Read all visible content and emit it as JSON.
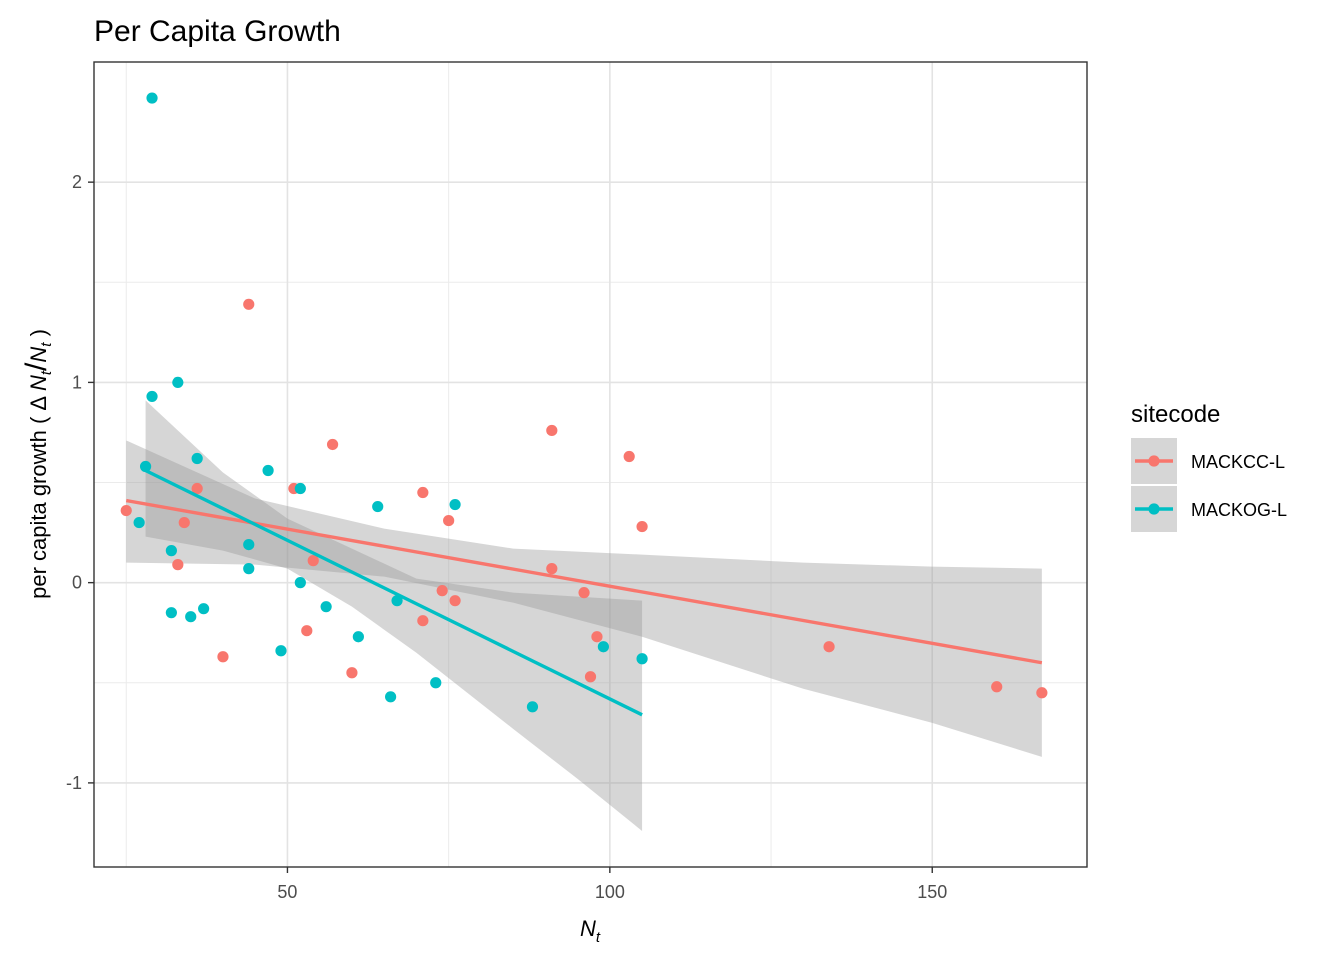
{
  "chart_data": {
    "type": "scatter",
    "title": "Per Capita Growth",
    "xlabel": {
      "main": "N",
      "sub": "t"
    },
    "ylabel": {
      "prefix": "per capita growth ( ",
      "delta": "Δ ",
      "numerator": "N",
      "numerator_sub": "t",
      "slash": "/",
      "denominator": "N",
      "denominator_sub": "t",
      "suffix": " )"
    },
    "xlim": [
      20,
      174
    ],
    "ylim": [
      -1.42,
      2.6
    ],
    "x_major_ticks": [
      50,
      100,
      150
    ],
    "x_minor_ticks": [
      25,
      75,
      125
    ],
    "y_major_ticks": [
      -1,
      0,
      1,
      2
    ],
    "y_minor_ticks": [
      -0.5,
      0.5,
      1.5
    ],
    "x_tick_labels": [
      "50",
      "100",
      "150"
    ],
    "y_tick_labels": [
      "-1",
      "0",
      "1",
      "2"
    ],
    "grid": true,
    "legend": {
      "title": "sitecode",
      "position": "right",
      "bg_color": "#d6d6d6"
    },
    "ribbon_color": "#999999",
    "series": [
      {
        "name": "MACKCC-L",
        "color": "#F8766D",
        "points": [
          [
            25,
            0.36
          ],
          [
            33,
            0.09
          ],
          [
            34,
            0.3
          ],
          [
            36,
            0.47
          ],
          [
            40,
            -0.37
          ],
          [
            44,
            1.39
          ],
          [
            51,
            0.47
          ],
          [
            53,
            -0.24
          ],
          [
            54,
            0.11
          ],
          [
            57,
            0.69
          ],
          [
            60,
            -0.45
          ],
          [
            71,
            -0.19
          ],
          [
            71,
            0.45
          ],
          [
            74,
            -0.04
          ],
          [
            75,
            0.31
          ],
          [
            76,
            -0.09
          ],
          [
            91,
            0.76
          ],
          [
            91,
            0.07
          ],
          [
            96,
            -0.05
          ],
          [
            97,
            -0.47
          ],
          [
            98,
            -0.27
          ],
          [
            103,
            0.63
          ],
          [
            105,
            0.28
          ],
          [
            134,
            -0.32
          ],
          [
            160,
            -0.52
          ],
          [
            167,
            -0.55
          ]
        ],
        "fit": {
          "x0": 25,
          "y0": 0.41,
          "x1": 167,
          "y1": -0.4
        },
        "ribbon_upper": [
          [
            25,
            0.71
          ],
          [
            45,
            0.42
          ],
          [
            65,
            0.27
          ],
          [
            85,
            0.17
          ],
          [
            105,
            0.14
          ],
          [
            130,
            0.1
          ],
          [
            150,
            0.08
          ],
          [
            167,
            0.07
          ]
        ],
        "ribbon_lower": [
          [
            25,
            0.1
          ],
          [
            45,
            0.09
          ],
          [
            65,
            0.03
          ],
          [
            85,
            -0.1
          ],
          [
            105,
            -0.27
          ],
          [
            130,
            -0.53
          ],
          [
            150,
            -0.7
          ],
          [
            167,
            -0.87
          ]
        ]
      },
      {
        "name": "MACKOG-L",
        "color": "#00BFC4",
        "points": [
          [
            27,
            0.3
          ],
          [
            28,
            0.58
          ],
          [
            29,
            0.93
          ],
          [
            29,
            2.42
          ],
          [
            32,
            0.16
          ],
          [
            32,
            -0.15
          ],
          [
            33,
            1.0
          ],
          [
            35,
            -0.17
          ],
          [
            36,
            0.62
          ],
          [
            37,
            -0.13
          ],
          [
            44,
            0.19
          ],
          [
            44,
            0.07
          ],
          [
            47,
            0.56
          ],
          [
            49,
            -0.34
          ],
          [
            52,
            0.47
          ],
          [
            52,
            0.0
          ],
          [
            56,
            -0.12
          ],
          [
            61,
            -0.27
          ],
          [
            64,
            0.38
          ],
          [
            66,
            -0.57
          ],
          [
            67,
            -0.09
          ],
          [
            73,
            -0.5
          ],
          [
            76,
            0.39
          ],
          [
            88,
            -0.62
          ],
          [
            99,
            -0.32
          ],
          [
            105,
            -0.38
          ]
        ],
        "fit": {
          "x0": 28,
          "y0": 0.56,
          "x1": 105,
          "y1": -0.66
        },
        "ribbon_upper": [
          [
            28,
            0.91
          ],
          [
            40,
            0.55
          ],
          [
            50,
            0.32
          ],
          [
            60,
            0.17
          ],
          [
            70,
            0.02
          ],
          [
            85,
            -0.05
          ],
          [
            95,
            -0.07
          ],
          [
            105,
            -0.09
          ]
        ],
        "ribbon_lower": [
          [
            28,
            0.23
          ],
          [
            40,
            0.16
          ],
          [
            50,
            0.07
          ],
          [
            60,
            -0.12
          ],
          [
            70,
            -0.35
          ],
          [
            85,
            -0.73
          ],
          [
            95,
            -0.98
          ],
          [
            105,
            -1.24
          ]
        ]
      }
    ]
  }
}
